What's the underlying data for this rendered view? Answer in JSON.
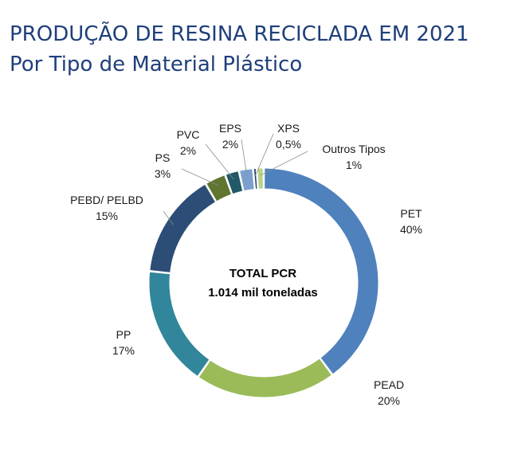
{
  "title_line1": "PRODUÇÃO DE RESINA RECICLADA EM 2021",
  "title_line2": "Por Tipo de Material Plástico",
  "chart_data": {
    "type": "pie",
    "variant": "donut",
    "title": "PRODUÇÃO DE RESINA RECICLADA EM 2021",
    "subtitle": "Por Tipo de Material Plástico",
    "center_text": [
      "TOTAL PCR",
      "1.014 mil toneladas"
    ],
    "slices": [
      {
        "name": "PET",
        "value": 40,
        "label": "40%",
        "color": "#4f81bd"
      },
      {
        "name": "PEAD",
        "value": 20,
        "label": "20%",
        "color": "#9bbb59"
      },
      {
        "name": "PP",
        "value": 17,
        "label": "17%",
        "color": "#31869b"
      },
      {
        "name": "PEBD/ PELBD",
        "value": 15,
        "label": "15%",
        "color": "#2c4d75"
      },
      {
        "name": "PS",
        "value": 3,
        "label": "3%",
        "color": "#5f7530"
      },
      {
        "name": "PVC",
        "value": 2,
        "label": "2%",
        "color": "#215967"
      },
      {
        "name": "EPS",
        "value": 2,
        "label": "2%",
        "color": "#7ba0d0"
      },
      {
        "name": "XPS",
        "value": 0.5,
        "label": "0,5%",
        "color": "#1f3864"
      },
      {
        "name": "Outros Tipos",
        "value": 1,
        "label": "1%",
        "color": "#b7d48a"
      }
    ]
  }
}
